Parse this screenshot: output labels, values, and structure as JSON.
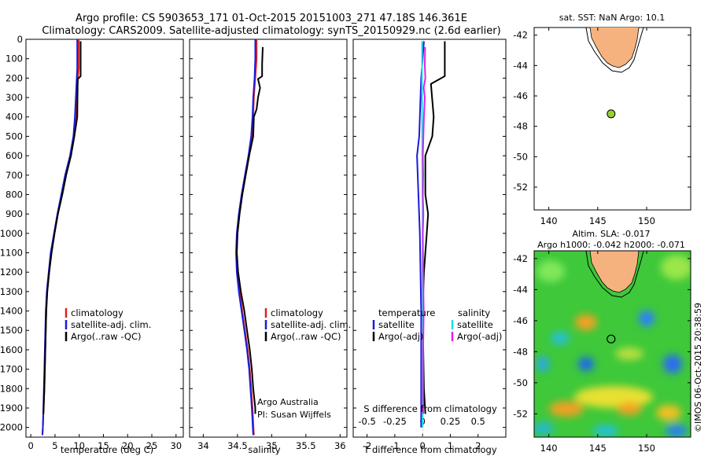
{
  "header": {
    "line1": "Argo profile: CS 5903653_171 01-Oct-2015 20151003_271 47.18S 146.361E",
    "line2": "Climatology: CARS2009. Satellite-adjusted climatology: synTS_20150929.nc (2.6d earlier)"
  },
  "colors": {
    "climatology": "#e0201a",
    "satellite": "#1a1adc",
    "argo": "#000000",
    "salinity_sat": "#19e3e3",
    "salinity_argo": "#e61ee6",
    "land": "#f6b27e",
    "float_dot": "#9acd32"
  },
  "chart_data": [
    {
      "type": "line",
      "title": "",
      "xlabel": "temperature (deg C)",
      "ylabel": "",
      "xlim": [
        -1,
        31.5
      ],
      "ylim": [
        2050,
        0
      ],
      "xticks": [
        "0",
        "5",
        "10",
        "15",
        "20",
        "25",
        "30"
      ],
      "xtick_values": [
        0,
        5,
        10,
        15,
        20,
        25,
        30
      ],
      "yticks": [
        "0",
        "100",
        "200",
        "300",
        "400",
        "500",
        "600",
        "700",
        "800",
        "900",
        "1000",
        "1100",
        "1200",
        "1300",
        "1400",
        "1500",
        "1600",
        "1700",
        "1800",
        "1900",
        "2000"
      ],
      "ytick_values": [
        0,
        100,
        200,
        300,
        400,
        500,
        600,
        700,
        800,
        900,
        1000,
        1100,
        1200,
        1300,
        1400,
        1500,
        1600,
        1700,
        1800,
        1900,
        2000
      ],
      "legend": {
        "position": "lower-center",
        "entries": [
          "climatology",
          "satellite-adj. clim.",
          "Argo(..raw -QC)"
        ]
      },
      "series": [
        {
          "name": "climatology",
          "color_key": "climatology",
          "points": [
            [
              9.9,
              0
            ],
            [
              9.9,
              150
            ],
            [
              9.6,
              250
            ],
            [
              9.3,
              400
            ],
            [
              8.9,
              500
            ],
            [
              8.2,
              600
            ],
            [
              7.2,
              700
            ],
            [
              6.4,
              800
            ],
            [
              5.6,
              900
            ],
            [
              4.9,
              1000
            ],
            [
              4.2,
              1100
            ],
            [
              3.8,
              1200
            ],
            [
              3.4,
              1300
            ],
            [
              3.2,
              1400
            ],
            [
              3.0,
              1600
            ],
            [
              2.8,
              1800
            ],
            [
              2.5,
              2000
            ],
            [
              2.4,
              2040
            ]
          ]
        },
        {
          "name": "satellite-adj. clim.",
          "color_key": "satellite",
          "points": [
            [
              9.6,
              0
            ],
            [
              9.6,
              150
            ],
            [
              9.4,
              250
            ],
            [
              9.1,
              400
            ],
            [
              8.8,
              500
            ],
            [
              8.1,
              600
            ],
            [
              7.1,
              700
            ],
            [
              6.3,
              800
            ],
            [
              5.5,
              900
            ],
            [
              4.8,
              1000
            ],
            [
              4.1,
              1100
            ],
            [
              3.7,
              1200
            ],
            [
              3.3,
              1300
            ],
            [
              3.1,
              1400
            ],
            [
              2.9,
              1600
            ],
            [
              2.7,
              1800
            ],
            [
              2.5,
              2000
            ],
            [
              2.4,
              2040
            ]
          ]
        },
        {
          "name": "Argo(..raw -QC)",
          "color_key": "argo",
          "points": [
            [
              10.3,
              10
            ],
            [
              10.3,
              190
            ],
            [
              9.7,
              205
            ],
            [
              9.6,
              400
            ],
            [
              9.0,
              500
            ],
            [
              8.3,
              600
            ],
            [
              7.3,
              700
            ],
            [
              6.5,
              800
            ],
            [
              5.6,
              900
            ],
            [
              4.9,
              1000
            ],
            [
              4.3,
              1100
            ],
            [
              3.8,
              1200
            ],
            [
              3.4,
              1300
            ],
            [
              3.2,
              1400
            ],
            [
              3.0,
              1600
            ],
            [
              2.8,
              1800
            ],
            [
              2.6,
              1930
            ]
          ]
        }
      ]
    },
    {
      "type": "line",
      "title": "",
      "xlabel": "salinity",
      "ylabel": "",
      "xlim": [
        33.8,
        36.1
      ],
      "ylim": [
        2050,
        0
      ],
      "xticks": [
        "34",
        "34.5",
        "35",
        "35.5",
        "36"
      ],
      "xtick_values": [
        34,
        34.5,
        35,
        35.5,
        36
      ],
      "legend": {
        "position": "lower-center",
        "entries": [
          "climatology",
          "satellite-adj. clim.",
          "Argo(..raw -QC)"
        ]
      },
      "annotations": [
        "Argo Australia",
        "PI: Susan Wijffels"
      ],
      "series": [
        {
          "name": "climatology",
          "color_key": "climatology",
          "points": [
            [
              34.78,
              0
            ],
            [
              34.78,
              100
            ],
            [
              34.76,
              200
            ],
            [
              34.74,
              300
            ],
            [
              34.73,
              400
            ],
            [
              34.71,
              500
            ],
            [
              34.67,
              600
            ],
            [
              34.62,
              700
            ],
            [
              34.57,
              800
            ],
            [
              34.53,
              900
            ],
            [
              34.5,
              1000
            ],
            [
              34.49,
              1100
            ],
            [
              34.5,
              1200
            ],
            [
              34.53,
              1300
            ],
            [
              34.57,
              1400
            ],
            [
              34.61,
              1500
            ],
            [
              34.65,
              1600
            ],
            [
              34.68,
              1700
            ],
            [
              34.7,
              1800
            ],
            [
              34.72,
              1900
            ],
            [
              34.74,
              2040
            ]
          ]
        },
        {
          "name": "satellite-adj. clim.",
          "color_key": "satellite",
          "points": [
            [
              34.76,
              0
            ],
            [
              34.76,
              100
            ],
            [
              34.75,
              200
            ],
            [
              34.73,
              300
            ],
            [
              34.72,
              400
            ],
            [
              34.7,
              500
            ],
            [
              34.66,
              600
            ],
            [
              34.61,
              700
            ],
            [
              34.56,
              800
            ],
            [
              34.52,
              900
            ],
            [
              34.49,
              1000
            ],
            [
              34.48,
              1100
            ],
            [
              34.49,
              1200
            ],
            [
              34.52,
              1300
            ],
            [
              34.56,
              1400
            ],
            [
              34.6,
              1500
            ],
            [
              34.64,
              1600
            ],
            [
              34.67,
              1700
            ],
            [
              34.69,
              1800
            ],
            [
              34.71,
              1900
            ],
            [
              34.73,
              2040
            ]
          ]
        },
        {
          "name": "Argo(..raw -QC)",
          "color_key": "argo",
          "points": [
            [
              34.87,
              40
            ],
            [
              34.86,
              130
            ],
            [
              34.86,
              190
            ],
            [
              34.8,
              205
            ],
            [
              34.83,
              250
            ],
            [
              34.8,
              300
            ],
            [
              34.78,
              360
            ],
            [
              34.74,
              400
            ],
            [
              34.73,
              500
            ],
            [
              34.67,
              600
            ],
            [
              34.62,
              700
            ],
            [
              34.57,
              800
            ],
            [
              34.53,
              900
            ],
            [
              34.5,
              1000
            ],
            [
              34.49,
              1100
            ],
            [
              34.51,
              1200
            ],
            [
              34.55,
              1300
            ],
            [
              34.6,
              1400
            ],
            [
              34.64,
              1500
            ],
            [
              34.68,
              1600
            ],
            [
              34.71,
              1700
            ],
            [
              34.73,
              1800
            ],
            [
              34.76,
              1900
            ],
            [
              34.76,
              1930
            ]
          ]
        }
      ]
    },
    {
      "type": "line",
      "title": "",
      "xlabel": "T difference from climatology",
      "xlabel_top": "S difference from climatology",
      "xlim": [
        -2.5,
        3
      ],
      "xlim_top": [
        -0.625,
        0.75
      ],
      "ylim": [
        2050,
        0
      ],
      "xticks": [
        "-2",
        "-1",
        "0",
        "1",
        "2"
      ],
      "xtick_values": [
        -2,
        -1,
        0,
        1,
        2
      ],
      "xticks_top": [
        "-0.5",
        "-0.25",
        "0",
        "0.25",
        "0.5"
      ],
      "xtick_values_top": [
        -0.5,
        -0.25,
        0,
        0.25,
        0.5
      ],
      "legend": {
        "position": "lower-center",
        "columns": [
          {
            "heading": "temperature",
            "entries": [
              "satellite",
              "Argo(-adj)"
            ]
          },
          {
            "heading": "salinity",
            "entries": [
              "satellite",
              "Argo(-adj)"
            ]
          }
        ]
      },
      "series": [
        {
          "name": "temperature satellite",
          "color_key": "satellite",
          "points": [
            [
              0.05,
              10
            ],
            [
              -0.05,
              200
            ],
            [
              -0.1,
              400
            ],
            [
              -0.12,
              500
            ],
            [
              -0.2,
              600
            ],
            [
              -0.15,
              800
            ],
            [
              -0.1,
              1000
            ],
            [
              -0.05,
              1400
            ],
            [
              -0.05,
              1800
            ],
            [
              -0.05,
              2000
            ]
          ]
        },
        {
          "name": "temperature Argo(-adj)",
          "color_key": "argo",
          "points": [
            [
              0.8,
              10
            ],
            [
              0.8,
              190
            ],
            [
              0.3,
              230
            ],
            [
              0.4,
              400
            ],
            [
              0.35,
              500
            ],
            [
              0.1,
              600
            ],
            [
              0.1,
              700
            ],
            [
              0.1,
              800
            ],
            [
              0.2,
              900
            ],
            [
              0.15,
              1000
            ],
            [
              0.05,
              1200
            ],
            [
              0.0,
              1400
            ],
            [
              0.05,
              1800
            ],
            [
              0.1,
              1930
            ]
          ]
        },
        {
          "name": "salinity satellite",
          "color_key": "salinity_sat",
          "points": [
            [
              -0.02,
              10
            ],
            [
              -0.02,
              300
            ],
            [
              -0.01,
              600
            ],
            [
              0.0,
              900
            ],
            [
              0.0,
              1200
            ],
            [
              0.0,
              1500
            ],
            [
              0.0,
              1800
            ],
            [
              0.0,
              2000
            ]
          ]
        },
        {
          "name": "salinity Argo(-adj)",
          "color_key": "salinity_argo",
          "points": [
            [
              0.09,
              40
            ],
            [
              0.08,
              130
            ],
            [
              0.1,
              200
            ],
            [
              0.04,
              250
            ],
            [
              0.08,
              300
            ],
            [
              0.05,
              400
            ],
            [
              0.03,
              500
            ],
            [
              0.01,
              600
            ],
            [
              0.02,
              700
            ],
            [
              0.01,
              800
            ],
            [
              0.03,
              900
            ],
            [
              0.01,
              1000
            ],
            [
              0.02,
              1200
            ],
            [
              0.04,
              1400
            ],
            [
              0.02,
              1600
            ],
            [
              0.02,
              1800
            ],
            [
              0.02,
              1930
            ]
          ]
        }
      ]
    },
    {
      "type": "map",
      "title": "sat. SST: NaN Argo: 10.1",
      "xlim": [
        138.5,
        154.5
      ],
      "ylim": [
        -53.5,
        -41.5
      ],
      "xticks": [
        "140",
        "145",
        "150"
      ],
      "xtick_values": [
        140,
        145,
        150
      ],
      "yticks": [
        "-42",
        "-44",
        "-46",
        "-48",
        "-50",
        "-52"
      ],
      "ytick_values": [
        -42,
        -44,
        -46,
        -48,
        -50,
        -52
      ],
      "float_position": [
        146.361,
        -47.18
      ]
    },
    {
      "type": "heatmap",
      "title_line1": "Altim. SLA: -0.017",
      "title_line2": "Argo h1000: -0.042 h2000: -0.071",
      "xlim": [
        138.5,
        154.5
      ],
      "ylim": [
        -53.5,
        -41.5
      ],
      "xticks": [
        "140",
        "145",
        "150"
      ],
      "xtick_values": [
        140,
        145,
        150
      ],
      "yticks": [
        "-42",
        "-44",
        "-46",
        "-48",
        "-50",
        "-52"
      ],
      "ytick_values": [
        -42,
        -44,
        -46,
        -48,
        -50,
        -52
      ],
      "float_position": [
        146.361,
        -47.18
      ],
      "watermark": "©IMOS 06-Oct-2015 20:38:59"
    }
  ]
}
